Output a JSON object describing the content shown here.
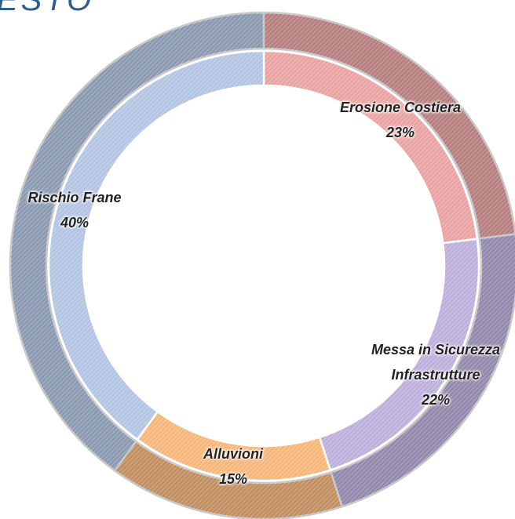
{
  "chart_data": {
    "type": "donut",
    "title": "ESTO",
    "categories": [
      "Erosione Costiera",
      "Messa in Sicurezza Infrastrutture",
      "Alluvioni",
      "Rischio Frane"
    ],
    "values": [
      23,
      22,
      15,
      40
    ],
    "value_labels": [
      "23%",
      "22%",
      "15%",
      "40%"
    ],
    "colors": [
      "#eaa3a3",
      "#bdb0dc",
      "#f7b77c",
      "#b3c5e3"
    ]
  }
}
